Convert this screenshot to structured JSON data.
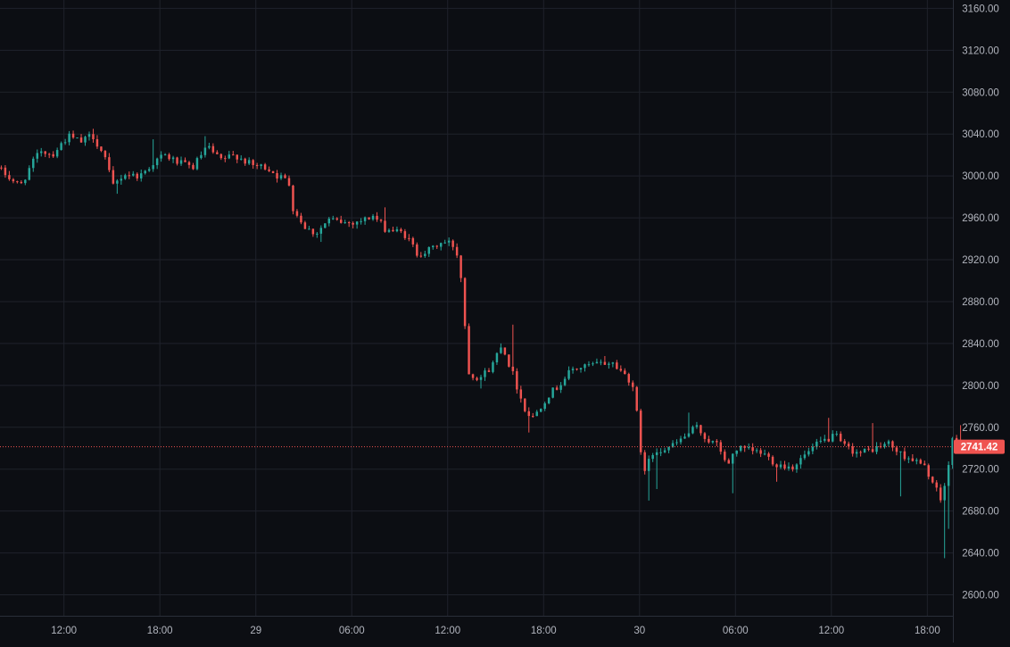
{
  "colors": {
    "background": "#0c0e13",
    "grid": "#1f222b",
    "axis_border": "#2a2e39",
    "axis_text": "#b2b5be",
    "up": "#26a69a",
    "down": "#ef5350",
    "price_line": "#ef5350",
    "price_label_bg": "#ef5350",
    "price_label_text": "#ffffff"
  },
  "chart_data": {
    "type": "candlestick",
    "y_axis_position": "right",
    "ylim": [
      2580,
      3168
    ],
    "y_ticks": [
      2600,
      2640,
      2680,
      2720,
      2760,
      2800,
      2840,
      2880,
      2920,
      2960,
      3000,
      3040,
      3080,
      3120,
      3160
    ],
    "y_tick_labels": [
      "2600.00",
      "2640.00",
      "2680.00",
      "2720.00",
      "2760.00",
      "2800.00",
      "2840.00",
      "2880.00",
      "2920.00",
      "2960.00",
      "3000.00",
      "3040.00",
      "3080.00",
      "3120.00",
      "3160.00"
    ],
    "time_start_hour": 8.0,
    "time_span_hours": 59.6,
    "x_ticks": [
      {
        "hour": 12,
        "label": "12:00"
      },
      {
        "hour": 18,
        "label": "18:00"
      },
      {
        "hour": 24,
        "label": "29"
      },
      {
        "hour": 30,
        "label": "06:00"
      },
      {
        "hour": 36,
        "label": "12:00"
      },
      {
        "hour": 42,
        "label": "18:00"
      },
      {
        "hour": 48,
        "label": "30"
      },
      {
        "hour": 54,
        "label": "06:00"
      },
      {
        "hour": 60,
        "label": "12:00"
      },
      {
        "hour": 66,
        "label": "18:00"
      }
    ],
    "candle_interval_hours": 0.25,
    "anchors": [
      [
        8.08,
        3008
      ],
      [
        9.5,
        2990
      ],
      [
        10.2,
        3010
      ],
      [
        10.8,
        3025
      ],
      [
        11.5,
        3020
      ],
      [
        12.5,
        3038
      ],
      [
        13.4,
        3032
      ],
      [
        14.0,
        3040
      ],
      [
        14.8,
        3018
      ],
      [
        15.3,
        2990
      ],
      [
        16.0,
        3002
      ],
      [
        17.0,
        3000
      ],
      [
        17.8,
        3012
      ],
      [
        18.5,
        3020
      ],
      [
        19.5,
        3012
      ],
      [
        20.3,
        3008
      ],
      [
        21.2,
        3028
      ],
      [
        22.0,
        3015
      ],
      [
        23.0,
        3020
      ],
      [
        24.0,
        3010
      ],
      [
        25.0,
        3008
      ],
      [
        25.6,
        3000
      ],
      [
        26.3,
        2995
      ],
      [
        26.6,
        2968
      ],
      [
        27.4,
        2950
      ],
      [
        28.0,
        2945
      ],
      [
        28.8,
        2958
      ],
      [
        30.0,
        2955
      ],
      [
        31.0,
        2958
      ],
      [
        31.6,
        2962
      ],
      [
        32.3,
        2950
      ],
      [
        33.5,
        2945
      ],
      [
        34.0,
        2935
      ],
      [
        34.3,
        2926
      ],
      [
        35.0,
        2928
      ],
      [
        35.8,
        2936
      ],
      [
        36.5,
        2936
      ],
      [
        37.0,
        2920
      ],
      [
        37.2,
        2880
      ],
      [
        37.6,
        2810
      ],
      [
        38.3,
        2808
      ],
      [
        39.0,
        2818
      ],
      [
        39.6,
        2840
      ],
      [
        40.3,
        2812
      ],
      [
        41.0,
        2780
      ],
      [
        41.5,
        2768
      ],
      [
        42.5,
        2790
      ],
      [
        43.2,
        2800
      ],
      [
        44.0,
        2815
      ],
      [
        45.5,
        2820
      ],
      [
        46.5,
        2822
      ],
      [
        47.0,
        2815
      ],
      [
        47.5,
        2808
      ],
      [
        48.0,
        2795
      ],
      [
        48.2,
        2740
      ],
      [
        48.6,
        2720
      ],
      [
        49.2,
        2738
      ],
      [
        49.8,
        2740
      ],
      [
        50.3,
        2742
      ],
      [
        51.0,
        2750
      ],
      [
        51.8,
        2760
      ],
      [
        52.5,
        2748
      ],
      [
        53.2,
        2742
      ],
      [
        53.8,
        2722
      ],
      [
        54.2,
        2740
      ],
      [
        55.0,
        2738
      ],
      [
        56.0,
        2735
      ],
      [
        56.8,
        2725
      ],
      [
        57.8,
        2722
      ],
      [
        58.5,
        2732
      ],
      [
        59.5,
        2745
      ],
      [
        60.5,
        2752
      ],
      [
        61.0,
        2742
      ],
      [
        62.0,
        2735
      ],
      [
        63.0,
        2740
      ],
      [
        63.8,
        2745
      ],
      [
        64.5,
        2735
      ],
      [
        65.5,
        2728
      ],
      [
        66.2,
        2720
      ],
      [
        66.8,
        2700
      ],
      [
        67.1,
        2690
      ],
      [
        67.5,
        2715
      ],
      [
        67.8,
        2748
      ],
      [
        68.3,
        2742
      ]
    ],
    "spikes": [
      {
        "hour": 13.8,
        "high": 3045
      },
      {
        "hour": 15.4,
        "low": 2983
      },
      {
        "hour": 17.7,
        "high": 3035
      },
      {
        "hour": 20.8,
        "high": 3038
      },
      {
        "hour": 28.2,
        "low": 2937
      },
      {
        "hour": 32.0,
        "high": 2970
      },
      {
        "hour": 38.0,
        "low": 2797
      },
      {
        "hour": 40.0,
        "high": 2858
      },
      {
        "hour": 41.1,
        "low": 2755
      },
      {
        "hour": 45.8,
        "high": 2828
      },
      {
        "hour": 48.5,
        "low": 2690
      },
      {
        "hour": 49.0,
        "low": 2701
      },
      {
        "hour": 51.1,
        "high": 2774
      },
      {
        "hour": 53.9,
        "low": 2697
      },
      {
        "hour": 56.7,
        "low": 2708
      },
      {
        "hour": 59.9,
        "high": 2769
      },
      {
        "hour": 62.6,
        "high": 2764
      },
      {
        "hour": 64.4,
        "low": 2694
      },
      {
        "hour": 67.2,
        "low": 2635
      },
      {
        "hour": 67.4,
        "low": 2663
      },
      {
        "hour": 68.0,
        "high": 2761
      },
      {
        "hour": 68.3,
        "high": 2762
      }
    ],
    "last_price": 2741.42,
    "last_price_label": "2741.42"
  }
}
